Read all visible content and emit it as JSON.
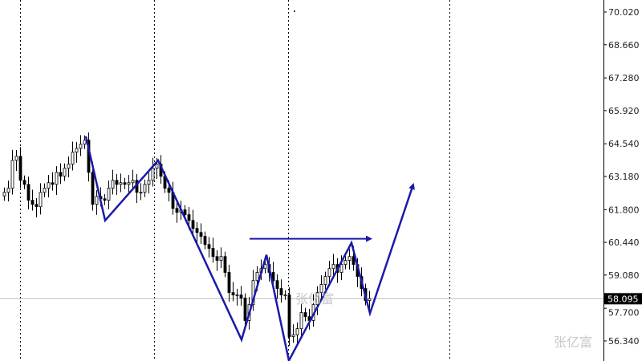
{
  "chart_data": {
    "type": "candlestick",
    "title": "",
    "xlabel": "",
    "ylabel": "",
    "ylim": [
      55.5,
      70.5
    ],
    "y_ticks": [
      "70.020",
      "68.660",
      "67.280",
      "65.920",
      "64.540",
      "63.180",
      "61.800",
      "60.440",
      "59.080",
      "57.700",
      "56.340"
    ],
    "current_price": "58.095",
    "grid": "vertical dotted separators",
    "closes": [
      62.52,
      62.69,
      63.85,
      64.02,
      63.02,
      62.85,
      62.19,
      62.02,
      61.92,
      62.52,
      62.69,
      62.92,
      62.85,
      63.35,
      63.19,
      63.52,
      63.69,
      64.19,
      64.35,
      64.52,
      64.69,
      63.35,
      62.02,
      62.35,
      62.25,
      62.19,
      62.69,
      63.02,
      62.85,
      62.92,
      62.85,
      62.92,
      63.02,
      62.52,
      62.52,
      62.85,
      63.02,
      63.52,
      63.69,
      63.19,
      62.69,
      62.52,
      61.85,
      61.69,
      61.79,
      61.59,
      61.35,
      61.02,
      60.85,
      60.69,
      60.35,
      60.19,
      59.85,
      59.69,
      59.85,
      59.19,
      58.35,
      58.25,
      58.25,
      58.12,
      57.19,
      57.85,
      58.85,
      59.19,
      59.35,
      59.52,
      59.19,
      58.85,
      58.52,
      58.25,
      58.25,
      56.52,
      56.59,
      56.85,
      57.52,
      57.35,
      57.19,
      57.85,
      58.35,
      58.69,
      59.02,
      59.35,
      59.52,
      59.19,
      59.52,
      59.69,
      59.85,
      59.52,
      59.02,
      58.52,
      58.02,
      58.1
    ],
    "annotations": {
      "zigzag": [
        [
          20.4,
          64.85
        ],
        [
          25.2,
          61.35
        ],
        [
          38.4,
          63.85
        ],
        [
          59.2,
          56.39
        ],
        [
          65.4,
          59.92
        ],
        [
          71,
          55.52
        ],
        [
          86.6,
          60.42
        ],
        [
          91.2,
          57.49
        ],
        [
          102,
          62.85
        ]
      ],
      "horizontal_arrow": [
        [
          61.2,
          60.59
        ],
        [
          91.4,
          60.59
        ]
      ],
      "color": "#1a1aaa"
    },
    "colors": {
      "bull": "#ffffff",
      "bear": "#000000",
      "outline": "#000000",
      "axis": "#000000"
    }
  },
  "watermark": "张亿富"
}
